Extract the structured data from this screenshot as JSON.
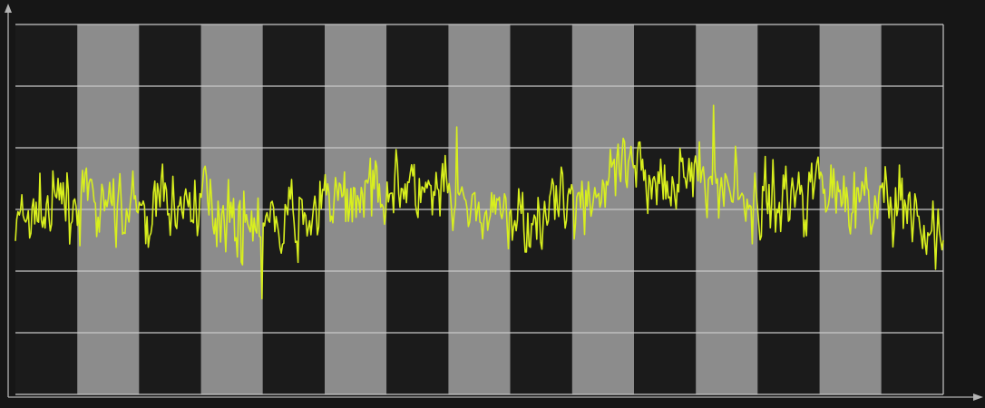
{
  "colors": {
    "background": "#161616",
    "plot_dark": "#1b1b1b",
    "plot_band": "#8c8c8c",
    "grid": "#c8c8c8",
    "axis": "#b4b4b4",
    "signal": "#d8ef1e"
  },
  "chart_data": {
    "type": "line",
    "title": "",
    "xlabel": "",
    "ylabel": "",
    "grid": true,
    "legend": "none",
    "xlim": [
      0,
      15
    ],
    "ylim": [
      -3,
      3
    ],
    "columns": 15,
    "band_pattern": [
      "dark",
      "band",
      "dark",
      "band",
      "dark",
      "band",
      "dark",
      "band",
      "dark",
      "band",
      "dark",
      "band",
      "dark",
      "band",
      "dark"
    ],
    "series": [
      {
        "name": "",
        "color": "#d8ef1e",
        "samples": 720,
        "seed": 7,
        "baseline": 0.0,
        "noise_amplitude": 0.8,
        "trend": [
          [
            0,
            -0.25
          ],
          [
            1,
            0.15
          ],
          [
            2,
            -0.1
          ],
          [
            3,
            0.2
          ],
          [
            4,
            -0.35
          ],
          [
            5,
            0.0
          ],
          [
            6,
            0.45
          ],
          [
            7,
            0.1
          ],
          [
            8,
            -0.2
          ],
          [
            9,
            0.15
          ],
          [
            10,
            0.55
          ],
          [
            11,
            0.6
          ],
          [
            12,
            0.05
          ],
          [
            13,
            0.5
          ],
          [
            14,
            0.05
          ],
          [
            15,
            -0.45
          ]
        ]
      }
    ]
  }
}
